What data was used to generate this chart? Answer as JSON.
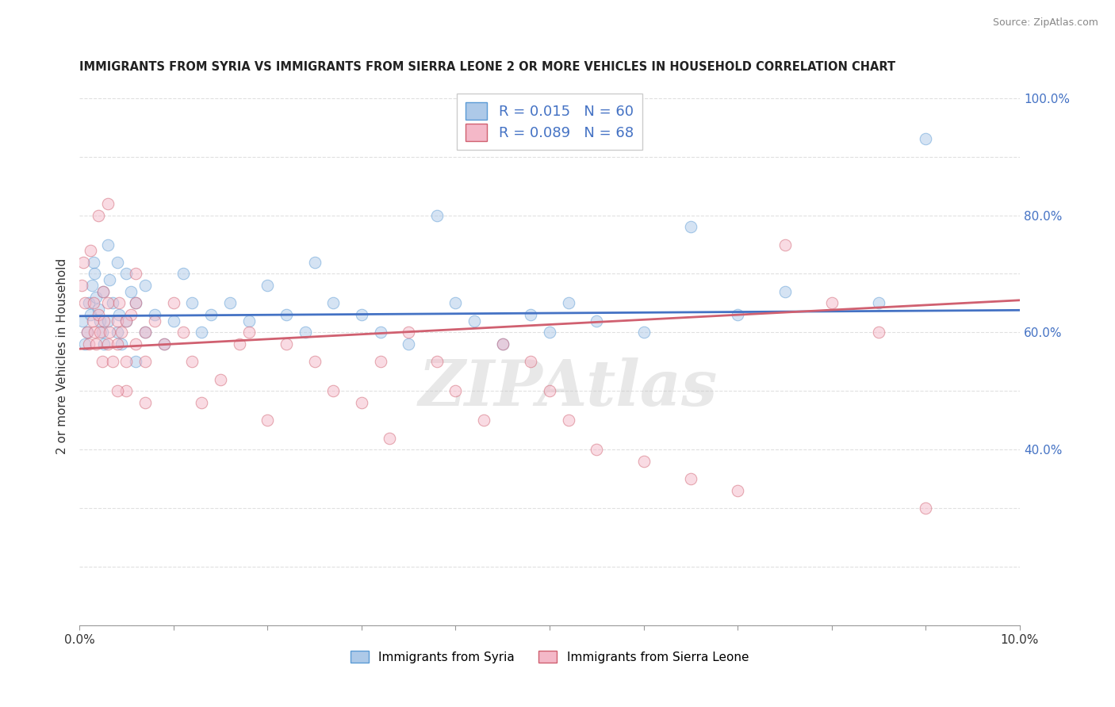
{
  "title": "IMMIGRANTS FROM SYRIA VS IMMIGRANTS FROM SIERRA LEONE 2 OR MORE VEHICLES IN HOUSEHOLD CORRELATION CHART",
  "source": "Source: ZipAtlas.com",
  "ylabel": "2 or more Vehicles in Household",
  "x_min": 0.0,
  "x_max": 0.1,
  "y_min": 0.1,
  "y_max": 1.02,
  "series1_label": "Immigrants from Syria",
  "series1_color": "#adc9e8",
  "series1_edge_color": "#5b9bd5",
  "series1_R": "0.015",
  "series1_N": "60",
  "series2_label": "Immigrants from Sierra Leone",
  "series2_color": "#f4b8c8",
  "series2_edge_color": "#d06070",
  "series2_R": "0.089",
  "series2_N": "68",
  "legend_R_N_color": "#4472c4",
  "watermark": "ZIPAtlas",
  "syria_x": [
    0.0003,
    0.0006,
    0.0008,
    0.001,
    0.0012,
    0.0013,
    0.0015,
    0.0016,
    0.0018,
    0.002,
    0.0022,
    0.0024,
    0.0025,
    0.0026,
    0.003,
    0.003,
    0.0032,
    0.0035,
    0.004,
    0.004,
    0.0042,
    0.0045,
    0.005,
    0.005,
    0.0055,
    0.006,
    0.006,
    0.007,
    0.007,
    0.008,
    0.009,
    0.01,
    0.011,
    0.012,
    0.013,
    0.014,
    0.016,
    0.018,
    0.02,
    0.022,
    0.024,
    0.025,
    0.027,
    0.03,
    0.032,
    0.035,
    0.038,
    0.04,
    0.042,
    0.045,
    0.048,
    0.05,
    0.052,
    0.055,
    0.06,
    0.065,
    0.07,
    0.075,
    0.085,
    0.09
  ],
  "syria_y": [
    0.62,
    0.58,
    0.6,
    0.65,
    0.63,
    0.68,
    0.72,
    0.7,
    0.66,
    0.64,
    0.62,
    0.6,
    0.67,
    0.58,
    0.75,
    0.62,
    0.69,
    0.65,
    0.72,
    0.6,
    0.63,
    0.58,
    0.7,
    0.62,
    0.67,
    0.65,
    0.55,
    0.68,
    0.6,
    0.63,
    0.58,
    0.62,
    0.7,
    0.65,
    0.6,
    0.63,
    0.65,
    0.62,
    0.68,
    0.63,
    0.6,
    0.72,
    0.65,
    0.63,
    0.6,
    0.58,
    0.8,
    0.65,
    0.62,
    0.58,
    0.63,
    0.6,
    0.65,
    0.62,
    0.6,
    0.78,
    0.63,
    0.67,
    0.65,
    0.93
  ],
  "sierra_x": [
    0.0002,
    0.0004,
    0.0006,
    0.0008,
    0.001,
    0.0012,
    0.0014,
    0.0015,
    0.0016,
    0.0018,
    0.002,
    0.0022,
    0.0024,
    0.0025,
    0.0026,
    0.003,
    0.003,
    0.0032,
    0.0035,
    0.004,
    0.004,
    0.0042,
    0.0045,
    0.005,
    0.005,
    0.0055,
    0.006,
    0.006,
    0.007,
    0.007,
    0.008,
    0.009,
    0.01,
    0.011,
    0.012,
    0.013,
    0.015,
    0.017,
    0.018,
    0.02,
    0.022,
    0.025,
    0.027,
    0.03,
    0.032,
    0.033,
    0.035,
    0.038,
    0.04,
    0.043,
    0.045,
    0.048,
    0.05,
    0.052,
    0.055,
    0.06,
    0.065,
    0.07,
    0.075,
    0.08,
    0.085,
    0.09,
    0.002,
    0.003,
    0.004,
    0.005,
    0.006,
    0.007
  ],
  "sierra_y": [
    0.68,
    0.72,
    0.65,
    0.6,
    0.58,
    0.74,
    0.62,
    0.65,
    0.6,
    0.58,
    0.63,
    0.6,
    0.55,
    0.67,
    0.62,
    0.58,
    0.65,
    0.6,
    0.55,
    0.62,
    0.58,
    0.65,
    0.6,
    0.55,
    0.5,
    0.63,
    0.58,
    0.65,
    0.6,
    0.55,
    0.62,
    0.58,
    0.65,
    0.6,
    0.55,
    0.48,
    0.52,
    0.58,
    0.6,
    0.45,
    0.58,
    0.55,
    0.5,
    0.48,
    0.55,
    0.42,
    0.6,
    0.55,
    0.5,
    0.45,
    0.58,
    0.55,
    0.5,
    0.45,
    0.4,
    0.38,
    0.35,
    0.33,
    0.75,
    0.65,
    0.6,
    0.3,
    0.8,
    0.82,
    0.5,
    0.62,
    0.7,
    0.48
  ],
  "syria_trend_x": [
    0.0,
    0.1
  ],
  "syria_trend_y": [
    0.628,
    0.638
  ],
  "sierra_trend_x": [
    0.0,
    0.1
  ],
  "sierra_trend_y": [
    0.572,
    0.655
  ],
  "dot_size": 110,
  "dot_alpha": 0.5,
  "background_color": "#ffffff",
  "grid_color": "#cccccc",
  "grid_style": "--",
  "grid_alpha": 0.6
}
